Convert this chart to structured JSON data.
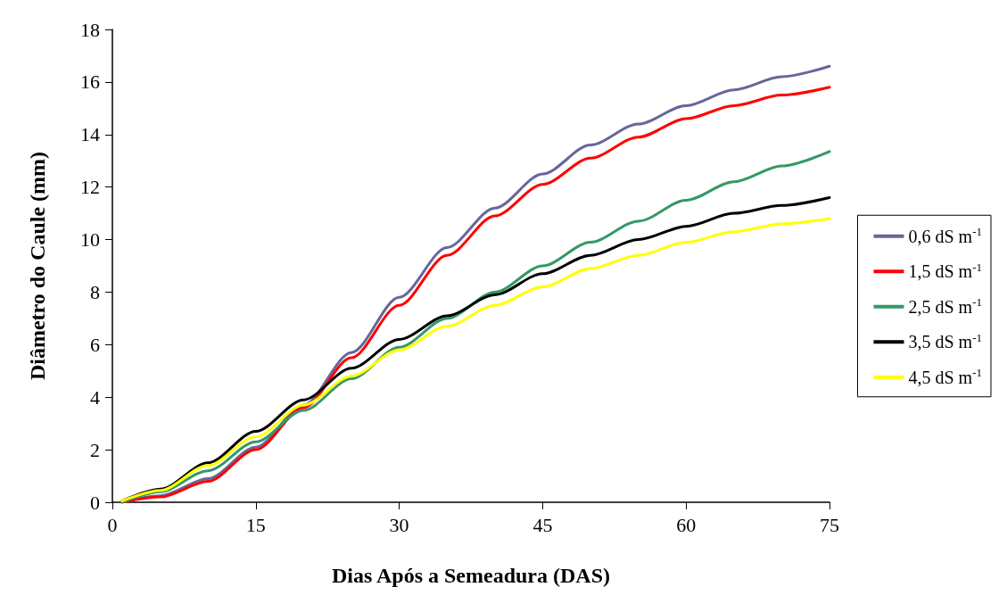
{
  "chart_data": {
    "type": "line",
    "xlabel": "Dias Após a Semeadura (DAS)",
    "ylabel": "Diâmetro do Caule (mm)",
    "x": [
      1,
      5,
      10,
      15,
      20,
      25,
      30,
      35,
      40,
      45,
      50,
      55,
      60,
      65,
      70,
      75
    ],
    "series": [
      {
        "name": "0,6 dS m$^{-1}$",
        "color": "#666699",
        "values": [
          0,
          0.25,
          0.9,
          2.1,
          3.7,
          5.7,
          7.8,
          9.7,
          11.2,
          12.5,
          13.6,
          14.4,
          15.1,
          15.7,
          16.2,
          16.6
        ]
      },
      {
        "name": "1,5 dS m$^{-1}$",
        "color": "#ff0000",
        "values": [
          0,
          0.2,
          0.8,
          2.0,
          3.6,
          5.5,
          7.5,
          9.4,
          10.9,
          12.1,
          13.1,
          13.9,
          14.6,
          15.1,
          15.5,
          15.8
        ]
      },
      {
        "name": "2,5 dS m$^{-1}$",
        "color": "#339966",
        "values": [
          0,
          0.4,
          1.2,
          2.3,
          3.5,
          4.7,
          5.9,
          7.0,
          8.0,
          9.0,
          9.9,
          10.7,
          11.5,
          12.2,
          12.8,
          13.35
        ]
      },
      {
        "name": "3,5 dS m$^{-1}$",
        "color": "#000000",
        "values": [
          0.05,
          0.5,
          1.5,
          2.7,
          3.9,
          5.1,
          6.2,
          7.1,
          7.9,
          8.7,
          9.4,
          10.0,
          10.5,
          11.0,
          11.3,
          11.6
        ]
      },
      {
        "name": "4,5 dS m$^{-1}$",
        "color": "#ffff00",
        "values": [
          0.05,
          0.45,
          1.4,
          2.5,
          3.7,
          4.8,
          5.8,
          6.7,
          7.5,
          8.2,
          8.9,
          9.4,
          9.9,
          10.3,
          10.6,
          10.8
        ]
      }
    ],
    "xlim": [
      0,
      75
    ],
    "xticks": [
      0,
      15,
      30,
      45,
      60,
      75
    ],
    "ylim": [
      0,
      18
    ],
    "yticks": [
      0,
      2,
      4,
      6,
      8,
      10,
      12,
      14,
      16,
      18
    ],
    "grid": false,
    "legend": "right",
    "marker": "none",
    "line_style": "solid"
  }
}
